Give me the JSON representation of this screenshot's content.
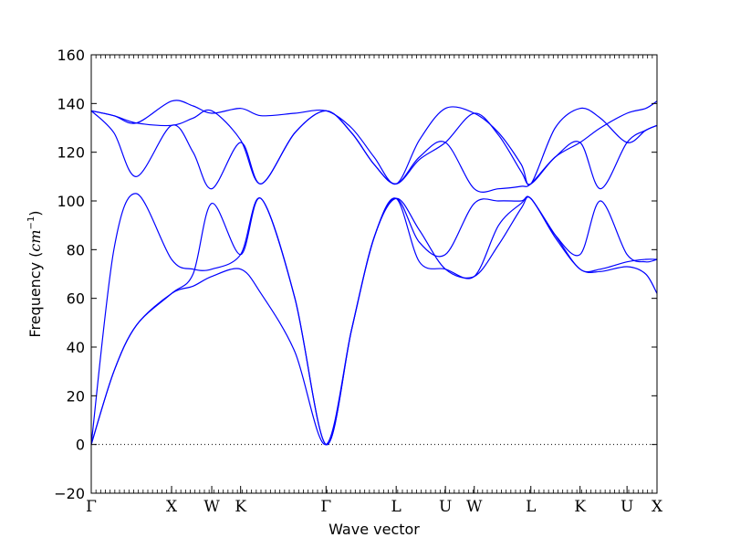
{
  "chart_data": {
    "type": "line",
    "title": "",
    "xlabel": "Wave vector",
    "ylabel": "Frequency (",
    "ylabel_unit": "cm",
    "ylabel_exp": "−1",
    "ylabel_close": ")",
    "ylim": [
      -20,
      160
    ],
    "yticks": [
      -20,
      0,
      20,
      40,
      60,
      80,
      100,
      120,
      140,
      160
    ],
    "ytick_labels": [
      "−20",
      "0",
      "20",
      "40",
      "60",
      "80",
      "100",
      "120",
      "140",
      "160"
    ],
    "xlim": [
      0,
      1
    ],
    "high_symmetry_points": [
      {
        "label": "Γ",
        "x": 0.0
      },
      {
        "label": "X",
        "x": 0.142
      },
      {
        "label": "W",
        "x": 0.213
      },
      {
        "label": "K",
        "x": 0.264
      },
      {
        "label": "Γ",
        "x": 0.415
      },
      {
        "label": "L",
        "x": 0.539
      },
      {
        "label": "U",
        "x": 0.626
      },
      {
        "label": "W",
        "x": 0.677
      },
      {
        "label": "L",
        "x": 0.777
      },
      {
        "label": "K",
        "x": 0.864
      },
      {
        "label": "U",
        "x": 0.947
      },
      {
        "label": "X",
        "x": 1.0
      }
    ],
    "zero_line": true,
    "line_color": "#0000ff",
    "series": [
      {
        "x": [
          0,
          0.04,
          0.08,
          0.142,
          0.18,
          0.213,
          0.264,
          0.3,
          0.36,
          0.415,
          0.46,
          0.5,
          0.539,
          0.58,
          0.626,
          0.677,
          0.72,
          0.76,
          0.777,
          0.82,
          0.864,
          0.9,
          0.947,
          0.98,
          1.0
        ],
        "y": [
          0,
          30,
          49,
          62,
          65,
          69,
          72,
          62,
          38,
          0,
          47,
          85,
          101,
          88,
          72,
          69,
          82,
          97,
          101,
          85,
          72,
          71,
          73,
          70,
          62
        ]
      },
      {
        "x": [
          0,
          0.04,
          0.08,
          0.142,
          0.18,
          0.213,
          0.264,
          0.3,
          0.36,
          0.415,
          0.46,
          0.5,
          0.539,
          0.58,
          0.626,
          0.677,
          0.72,
          0.76,
          0.777,
          0.82,
          0.864,
          0.9,
          0.947,
          0.98,
          1.0
        ],
        "y": [
          0,
          30,
          49,
          62,
          70,
          99,
          78,
          101,
          60,
          0,
          47,
          85,
          101,
          75,
          72,
          69,
          90,
          99,
          101,
          86,
          78,
          100,
          78,
          75,
          76
        ]
      },
      {
        "x": [
          0,
          0.04,
          0.08,
          0.142,
          0.18,
          0.213,
          0.264,
          0.3,
          0.36,
          0.415,
          0.46,
          0.5,
          0.539,
          0.58,
          0.626,
          0.677,
          0.72,
          0.76,
          0.777,
          0.82,
          0.864,
          0.9,
          0.947,
          0.98,
          1.0
        ],
        "y": [
          0,
          80,
          103,
          76,
          72,
          72,
          78,
          101,
          60,
          0,
          47,
          85,
          101,
          83,
          78,
          99,
          100,
          100,
          101,
          86,
          72,
          72,
          75,
          76,
          76
        ]
      },
      {
        "x": [
          0,
          0.04,
          0.08,
          0.142,
          0.18,
          0.213,
          0.264,
          0.3,
          0.36,
          0.415,
          0.46,
          0.5,
          0.539,
          0.58,
          0.626,
          0.677,
          0.72,
          0.76,
          0.777,
          0.82,
          0.864,
          0.9,
          0.947,
          0.98,
          1.0
        ],
        "y": [
          137,
          128,
          110,
          131,
          120,
          105,
          124,
          107,
          128,
          137,
          128,
          115,
          107,
          118,
          124,
          105,
          105,
          106,
          107,
          118,
          124,
          105,
          124,
          129,
          131
        ]
      },
      {
        "x": [
          0,
          0.04,
          0.08,
          0.142,
          0.18,
          0.213,
          0.264,
          0.3,
          0.36,
          0.415,
          0.46,
          0.5,
          0.539,
          0.58,
          0.626,
          0.677,
          0.72,
          0.76,
          0.777,
          0.82,
          0.864,
          0.9,
          0.947,
          0.98,
          1.0
        ],
        "y": [
          137,
          135,
          132,
          131,
          134,
          137,
          125,
          107,
          128,
          137,
          128,
          115,
          107,
          117,
          124,
          136,
          127,
          112,
          107,
          118,
          124,
          130,
          136,
          138,
          141
        ]
      },
      {
        "x": [
          0,
          0.04,
          0.08,
          0.142,
          0.18,
          0.213,
          0.264,
          0.3,
          0.36,
          0.415,
          0.46,
          0.5,
          0.539,
          0.58,
          0.626,
          0.677,
          0.72,
          0.76,
          0.777,
          0.82,
          0.864,
          0.9,
          0.947,
          0.98,
          1.0
        ],
        "y": [
          137,
          135,
          132,
          141,
          139,
          136,
          138,
          135,
          136,
          137,
          130,
          118,
          107,
          125,
          138,
          136,
          128,
          115,
          107,
          130,
          138,
          134,
          124,
          129,
          131
        ]
      }
    ]
  }
}
